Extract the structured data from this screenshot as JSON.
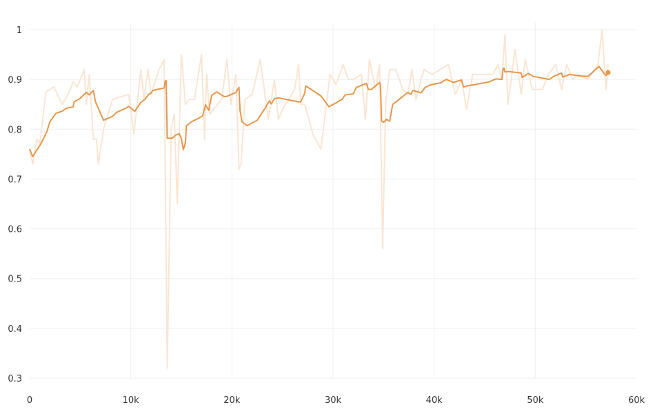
{
  "chart_data": {
    "type": "line",
    "title": "",
    "xlabel": "",
    "ylabel": "",
    "xlim": [
      0,
      60000
    ],
    "ylim": [
      0.3,
      1.0
    ],
    "grid": true,
    "x_ticks": [
      0,
      10000,
      20000,
      30000,
      40000,
      50000,
      60000
    ],
    "x_tick_labels": [
      "0",
      "10k",
      "20k",
      "30k",
      "40k",
      "50k",
      "60k"
    ],
    "y_ticks": [
      0.3,
      0.4,
      0.5,
      0.6,
      0.7,
      0.8,
      0.9,
      1.0
    ],
    "y_tick_labels": [
      "0.3",
      "0.4",
      "0.5",
      "0.6",
      "0.7",
      "0.8",
      "0.9",
      "1"
    ],
    "colors": {
      "smoothed": "#e8964a",
      "raw": "#fbe5d2"
    },
    "series": [
      {
        "role": "raw",
        "x": [
          0,
          300,
          700,
          1000,
          1600,
          2400,
          3200,
          3800,
          4300,
          4700,
          5400,
          5600,
          5900,
          6300,
          6600,
          6800,
          7300,
          8200,
          9800,
          10300,
          11000,
          11300,
          11700,
          12000,
          12300,
          12800,
          13300,
          13600,
          14000,
          14300,
          14600,
          15000,
          15400,
          15800,
          16300,
          17000,
          17300,
          17500,
          17800,
          18200,
          19000,
          19500,
          19900,
          20400,
          20700,
          20900,
          21300,
          22000,
          22800,
          23600,
          24200,
          24600,
          25000,
          26200,
          26600,
          26800,
          27200,
          28000,
          28800,
          29700,
          30300,
          31000,
          31500,
          32000,
          32800,
          33200,
          33600,
          34200,
          34600,
          34900,
          35200,
          35600,
          36200,
          36900,
          37400,
          37800,
          38200,
          38700,
          39000,
          39800,
          41400,
          42100,
          42700,
          43200,
          43800,
          44700,
          45800,
          46300,
          46700,
          47000,
          47300,
          48000,
          48600,
          49000,
          49700,
          50700,
          51300,
          52000,
          52600,
          53100,
          53700,
          54300,
          55200,
          56200,
          56600,
          57000,
          57200
        ],
        "values": [
          0.76,
          0.73,
          0.78,
          0.77,
          0.875,
          0.885,
          0.85,
          0.87,
          0.895,
          0.885,
          0.92,
          0.85,
          0.91,
          0.78,
          0.78,
          0.73,
          0.8,
          0.86,
          0.87,
          0.79,
          0.92,
          0.86,
          0.92,
          0.87,
          0.89,
          0.92,
          0.94,
          0.32,
          0.8,
          0.83,
          0.65,
          0.95,
          0.85,
          0.86,
          0.86,
          0.95,
          0.78,
          0.91,
          0.83,
          0.84,
          0.86,
          0.94,
          0.85,
          0.91,
          0.72,
          0.73,
          0.86,
          0.87,
          0.94,
          0.82,
          0.9,
          0.82,
          0.84,
          0.88,
          0.93,
          0.85,
          0.85,
          0.79,
          0.76,
          0.91,
          0.89,
          0.93,
          0.9,
          0.9,
          0.91,
          0.82,
          0.94,
          0.88,
          0.93,
          0.56,
          0.85,
          0.92,
          0.92,
          0.88,
          0.87,
          0.92,
          0.86,
          0.9,
          0.92,
          0.91,
          0.93,
          0.87,
          0.9,
          0.84,
          0.91,
          0.91,
          0.91,
          0.93,
          0.9,
          0.99,
          0.85,
          0.96,
          0.87,
          0.94,
          0.88,
          0.88,
          0.91,
          0.93,
          0.88,
          0.93,
          0.9,
          0.91,
          0.9,
          0.93,
          1.0,
          0.88,
          0.93
        ]
      },
      {
        "role": "smoothed",
        "x": [
          0,
          300,
          700,
          1100,
          1700,
          2000,
          2600,
          3200,
          3600,
          4300,
          4400,
          5000,
          5600,
          5900,
          6200,
          6300,
          6500,
          7300,
          8200,
          8600,
          9600,
          9800,
          10400,
          11000,
          11400,
          11700,
          12000,
          12200,
          13300,
          13400,
          13500,
          13600,
          14100,
          14500,
          14800,
          15000,
          15200,
          15400,
          15500,
          16000,
          16800,
          17100,
          17400,
          17700,
          18000,
          18500,
          19200,
          19500,
          20400,
          20500,
          20600,
          20700,
          20800,
          21000,
          21500,
          22500,
          23300,
          23700,
          23900,
          24200,
          24600,
          26600,
          26800,
          27200,
          27300,
          28800,
          29600,
          30900,
          31200,
          32000,
          32300,
          32700,
          32900,
          33300,
          33500,
          33800,
          34200,
          34600,
          34700,
          34800,
          35000,
          35300,
          35600,
          35900,
          36500,
          36900,
          37400,
          37700,
          37900,
          38700,
          39100,
          39600,
          40600,
          41200,
          41900,
          42700,
          42900,
          43300,
          45400,
          46100,
          46700,
          46800,
          46900,
          47000,
          47300,
          48600,
          48700,
          49300,
          49800,
          51400,
          51800,
          52600,
          52700,
          53400,
          54500,
          55200,
          56300,
          56800,
          57000,
          57100
        ],
        "values": [
          0.76,
          0.745,
          0.758,
          0.77,
          0.795,
          0.815,
          0.832,
          0.836,
          0.842,
          0.845,
          0.855,
          0.862,
          0.874,
          0.869,
          0.876,
          0.878,
          0.856,
          0.818,
          0.826,
          0.834,
          0.843,
          0.846,
          0.836,
          0.854,
          0.86,
          0.868,
          0.873,
          0.878,
          0.883,
          0.897,
          0.897,
          0.782,
          0.782,
          0.789,
          0.791,
          0.781,
          0.759,
          0.773,
          0.807,
          0.815,
          0.823,
          0.827,
          0.849,
          0.838,
          0.868,
          0.875,
          0.866,
          0.866,
          0.874,
          0.877,
          0.881,
          0.884,
          0.838,
          0.815,
          0.807,
          0.818,
          0.843,
          0.857,
          0.851,
          0.861,
          0.863,
          0.855,
          0.855,
          0.872,
          0.887,
          0.867,
          0.845,
          0.86,
          0.869,
          0.871,
          0.884,
          0.887,
          0.889,
          0.892,
          0.88,
          0.88,
          0.887,
          0.894,
          0.886,
          0.816,
          0.814,
          0.82,
          0.816,
          0.85,
          0.859,
          0.866,
          0.874,
          0.87,
          0.878,
          0.873,
          0.884,
          0.889,
          0.893,
          0.9,
          0.894,
          0.899,
          0.885,
          0.887,
          0.895,
          0.901,
          0.9,
          0.92,
          0.923,
          0.915,
          0.916,
          0.913,
          0.904,
          0.912,
          0.906,
          0.9,
          0.906,
          0.913,
          0.905,
          0.91,
          0.907,
          0.906,
          0.926,
          0.912,
          0.908,
          0.913
        ]
      }
    ],
    "last_point": {
      "x": 57200,
      "value": 0.914
    }
  }
}
